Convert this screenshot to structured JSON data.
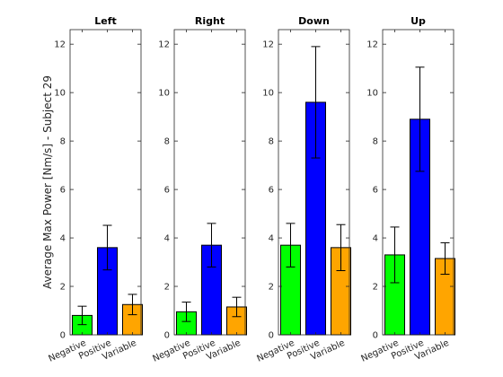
{
  "figure": {
    "ylabel": "Average Max Power [Nm/s] - Subject 29"
  },
  "chart_data": [
    {
      "type": "bar",
      "title": "Left",
      "categories": [
        "Negative",
        "Positive",
        "Variable"
      ],
      "values": [
        0.8,
        3.6,
        1.25
      ],
      "errors": [
        0.38,
        0.92,
        0.42
      ],
      "colors": [
        "#00ff00",
        "#0000ff",
        "#ffa500"
      ],
      "ylim": [
        0,
        12.6
      ],
      "yticks": [
        "0",
        "2",
        "4",
        "6",
        "8",
        "10",
        "12"
      ],
      "grid": false
    },
    {
      "type": "bar",
      "title": "Right",
      "categories": [
        "Negative",
        "Positive",
        "Variable"
      ],
      "values": [
        0.95,
        3.7,
        1.15
      ],
      "errors": [
        0.4,
        0.9,
        0.4
      ],
      "colors": [
        "#00ff00",
        "#0000ff",
        "#ffa500"
      ],
      "ylim": [
        0,
        12.6
      ],
      "yticks": [
        "0",
        "2",
        "4",
        "6",
        "8",
        "10",
        "12"
      ],
      "grid": false
    },
    {
      "type": "bar",
      "title": "Down",
      "categories": [
        "Negative",
        "Positive",
        "Variable"
      ],
      "values": [
        3.7,
        9.6,
        3.6
      ],
      "errors": [
        0.9,
        2.3,
        0.95
      ],
      "colors": [
        "#00ff00",
        "#0000ff",
        "#ffa500"
      ],
      "ylim": [
        0,
        12.6
      ],
      "yticks": [
        "0",
        "2",
        "4",
        "6",
        "8",
        "10",
        "12"
      ],
      "grid": false
    },
    {
      "type": "bar",
      "title": "Up",
      "categories": [
        "Negative",
        "Positive",
        "Variable"
      ],
      "values": [
        3.3,
        8.9,
        3.15
      ],
      "errors": [
        1.15,
        2.15,
        0.65
      ],
      "colors": [
        "#00ff00",
        "#0000ff",
        "#ffa500"
      ],
      "ylim": [
        0,
        12.6
      ],
      "yticks": [
        "0",
        "2",
        "4",
        "6",
        "8",
        "10",
        "12"
      ],
      "grid": false
    }
  ]
}
